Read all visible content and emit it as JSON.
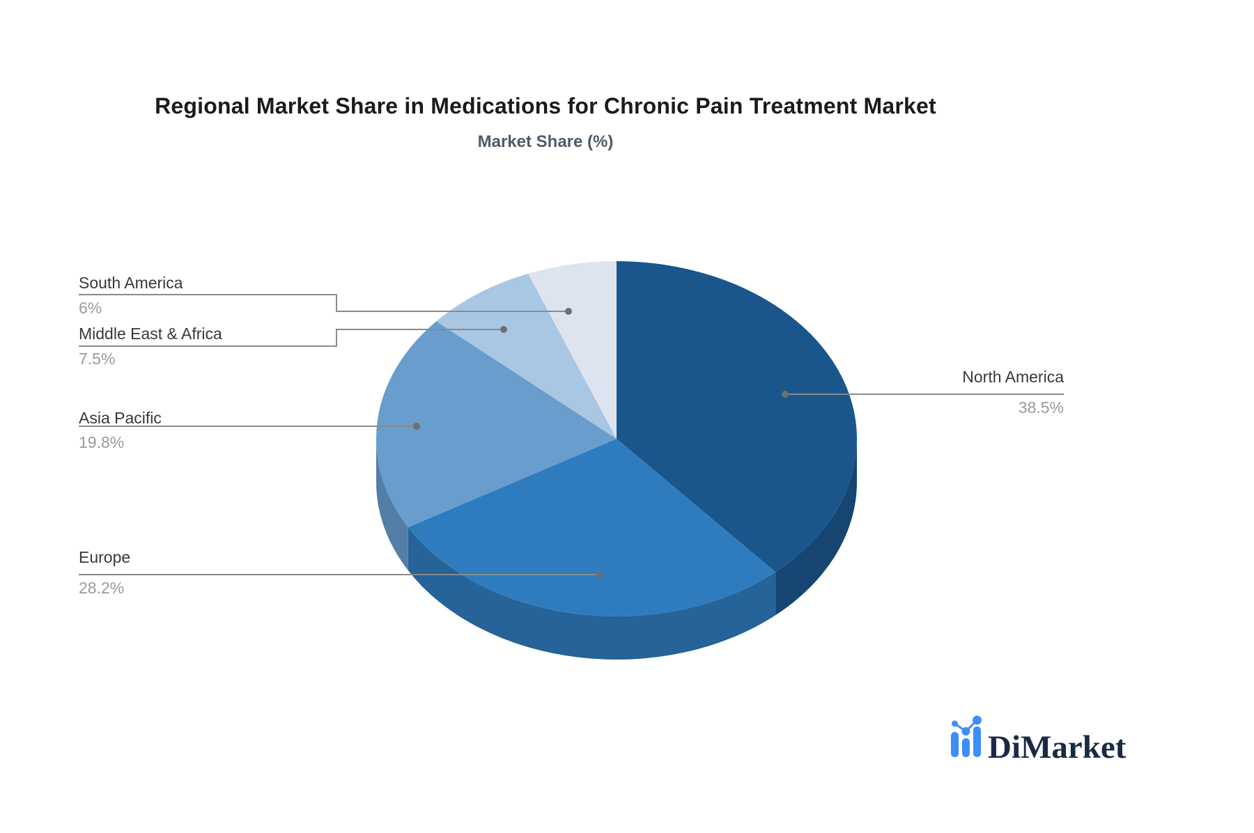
{
  "chart_data": {
    "type": "pie",
    "title": "Regional Market Share in Medications for Chronic Pain Treatment Market",
    "subtitle": "Market Share (%)",
    "unit": "%",
    "start_angle": "12-o-clock",
    "direction": "clockwise",
    "style": "3d-extruded",
    "legend_position": "none",
    "labels": "callout-lines-with-dots",
    "callout_color": "#8a8a8a",
    "label_color": "#383838",
    "value_color": "#9a9a9a",
    "slices": [
      {
        "label": "North America",
        "value": 38.5,
        "display": "38.5%",
        "color": "#1A568C"
      },
      {
        "label": "Europe",
        "value": 28.2,
        "display": "28.2%",
        "color": "#2E7CBE"
      },
      {
        "label": "Asia Pacific",
        "value": 19.8,
        "display": "19.8%",
        "color": "#689DCE"
      },
      {
        "label": "Middle East & Africa",
        "value": 7.5,
        "display": "7.5%",
        "color": "#A9C6E3"
      },
      {
        "label": "South America",
        "value": 6,
        "display": "6%",
        "color": "#DDE4EF"
      }
    ]
  },
  "brand": {
    "name": "DiMarket",
    "icon": "bar-line-chart-icon",
    "accent_color": "#3d8ef8",
    "text_color": "#1b2a44"
  }
}
